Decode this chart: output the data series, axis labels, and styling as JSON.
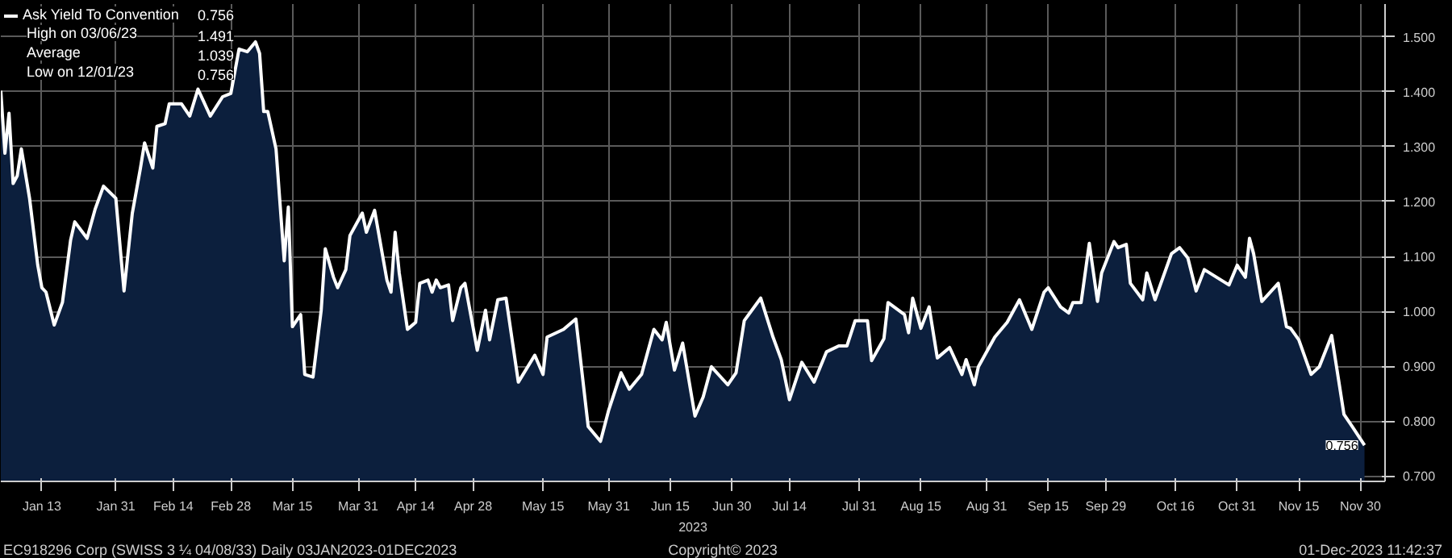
{
  "chart_data": {
    "type": "area",
    "xlabel": "2023",
    "x": [
      "2023-01-03",
      "2023-01-04",
      "2023-01-05",
      "2023-01-06",
      "2023-01-07",
      "2023-01-08",
      "2023-01-10",
      "2023-01-12",
      "2023-01-13",
      "2023-01-14",
      "2023-01-16",
      "2023-01-18",
      "2023-01-20",
      "2023-01-21",
      "2023-01-24",
      "2023-01-26",
      "2023-01-28",
      "2023-01-31",
      "2023-02-02",
      "2023-02-04",
      "2023-02-06",
      "2023-02-07",
      "2023-02-09",
      "2023-02-10",
      "2023-02-12",
      "2023-02-13",
      "2023-02-16",
      "2023-02-18",
      "2023-02-20",
      "2023-02-23",
      "2023-02-26",
      "2023-02-28",
      "2023-03-02",
      "2023-03-04",
      "2023-03-06",
      "2023-03-07",
      "2023-03-08",
      "2023-03-09",
      "2023-03-11",
      "2023-03-13",
      "2023-03-14",
      "2023-03-15",
      "2023-03-17",
      "2023-03-18",
      "2023-03-20",
      "2023-03-22",
      "2023-03-23",
      "2023-03-25",
      "2023-03-26",
      "2023-03-28",
      "2023-03-29",
      "2023-04-01",
      "2023-04-02",
      "2023-04-04",
      "2023-04-07",
      "2023-04-08",
      "2023-04-09",
      "2023-04-10",
      "2023-04-12",
      "2023-04-14",
      "2023-04-15",
      "2023-04-17",
      "2023-04-18",
      "2023-04-19",
      "2023-04-20",
      "2023-04-22",
      "2023-04-23",
      "2023-04-25",
      "2023-04-26",
      "2023-04-29",
      "2023-05-01",
      "2023-05-02",
      "2023-05-04",
      "2023-05-06",
      "2023-05-09",
      "2023-05-13",
      "2023-05-15",
      "2023-05-16",
      "2023-05-20",
      "2023-05-23",
      "2023-05-26",
      "2023-05-29",
      "2023-05-31",
      "2023-06-03",
      "2023-06-05",
      "2023-06-08",
      "2023-06-11",
      "2023-06-13",
      "2023-06-14",
      "2023-06-16",
      "2023-06-18",
      "2023-06-21",
      "2023-06-23",
      "2023-06-25",
      "2023-06-29",
      "2023-07-01",
      "2023-07-03",
      "2023-07-07",
      "2023-07-10",
      "2023-07-12",
      "2023-07-14",
      "2023-07-17",
      "2023-07-20",
      "2023-07-23",
      "2023-07-26",
      "2023-07-28",
      "2023-07-30",
      "2023-08-02",
      "2023-08-03",
      "2023-08-06",
      "2023-08-07",
      "2023-08-11",
      "2023-08-12",
      "2023-08-13",
      "2023-08-15",
      "2023-08-17",
      "2023-08-19",
      "2023-08-22",
      "2023-08-25",
      "2023-08-26",
      "2023-08-28",
      "2023-08-29",
      "2023-09-02",
      "2023-09-05",
      "2023-09-08",
      "2023-09-11",
      "2023-09-14",
      "2023-09-15",
      "2023-09-18",
      "2023-09-20",
      "2023-09-21",
      "2023-09-23",
      "2023-09-25",
      "2023-09-27",
      "2023-09-28",
      "2023-10-01",
      "2023-10-02",
      "2023-10-04",
      "2023-10-05",
      "2023-10-08",
      "2023-10-09",
      "2023-10-11",
      "2023-10-15",
      "2023-10-17",
      "2023-10-19",
      "2023-10-21",
      "2023-10-23",
      "2023-10-29",
      "2023-10-31",
      "2023-11-02",
      "2023-11-03",
      "2023-11-04",
      "2023-11-06",
      "2023-11-10",
      "2023-11-12",
      "2023-11-13",
      "2023-11-15",
      "2023-11-18",
      "2023-11-20",
      "2023-11-23",
      "2023-11-26",
      "2023-11-28",
      "2023-12-01"
    ],
    "series": [
      {
        "name": "Ask Yield To Convention",
        "color": "#ffffff",
        "values": [
          1.402,
          1.288,
          1.361,
          1.233,
          1.247,
          1.296,
          1.206,
          1.084,
          1.043,
          1.035,
          0.975,
          1.016,
          1.13,
          1.163,
          1.133,
          1.187,
          1.228,
          1.206,
          1.037,
          1.178,
          1.261,
          1.307,
          1.261,
          1.337,
          1.342,
          1.378,
          1.378,
          1.356,
          1.405,
          1.356,
          1.391,
          1.397,
          1.478,
          1.473,
          1.491,
          1.47,
          1.364,
          1.364,
          1.296,
          1.092,
          1.19,
          0.972,
          0.994,
          0.885,
          0.88,
          1.002,
          1.114,
          1.062,
          1.043,
          1.076,
          1.138,
          1.179,
          1.144,
          1.184,
          1.057,
          1.035,
          1.144,
          1.07,
          0.967,
          0.98,
          1.051,
          1.057,
          1.035,
          1.057,
          1.043,
          1.048,
          0.983,
          1.043,
          1.051,
          0.929,
          1.002,
          0.948,
          1.021,
          1.024,
          0.871,
          0.92,
          0.885,
          0.953,
          0.967,
          0.986,
          0.79,
          0.763,
          0.82,
          0.888,
          0.858,
          0.885,
          0.967,
          0.948,
          0.98,
          0.893,
          0.942,
          0.809,
          0.844,
          0.899,
          0.866,
          0.888,
          0.983,
          1.024,
          0.953,
          0.912,
          0.839,
          0.907,
          0.871,
          0.926,
          0.937,
          0.937,
          0.983,
          0.983,
          0.91,
          0.95,
          1.016,
          0.994,
          0.961,
          1.024,
          0.969,
          1.008,
          0.915,
          0.934,
          0.885,
          0.912,
          0.866,
          0.899,
          0.953,
          0.98,
          1.021,
          0.967,
          1.035,
          1.043,
          1.008,
          0.997,
          1.016,
          1.016,
          1.124,
          1.018,
          1.07,
          1.127,
          1.116,
          1.122,
          1.051,
          1.021,
          1.07,
          1.021,
          1.105,
          1.116,
          1.097,
          1.037,
          1.076,
          1.048,
          1.084,
          1.062,
          1.133,
          1.105,
          1.018,
          1.051,
          0.972,
          0.969,
          0.948,
          0.885,
          0.899,
          0.956,
          0.812,
          0.79,
          0.756
        ]
      }
    ],
    "xlim": [
      "2023-01-03",
      "2023-12-06"
    ],
    "xticks": [
      {
        "value": "2023-01-13",
        "label": "Jan 13"
      },
      {
        "value": "2023-01-31",
        "label": "Jan 31"
      },
      {
        "value": "2023-02-14",
        "label": "Feb 14"
      },
      {
        "value": "2023-02-28",
        "label": "Feb 28"
      },
      {
        "value": "2023-03-15",
        "label": "Mar 15"
      },
      {
        "value": "2023-03-31",
        "label": "Mar 31"
      },
      {
        "value": "2023-04-14",
        "label": "Apr 14"
      },
      {
        "value": "2023-04-28",
        "label": "Apr 28"
      },
      {
        "value": "2023-05-15",
        "label": "May 15"
      },
      {
        "value": "2023-05-31",
        "label": "May 31"
      },
      {
        "value": "2023-06-15",
        "label": "Jun 15"
      },
      {
        "value": "2023-06-30",
        "label": "Jun 30"
      },
      {
        "value": "2023-07-14",
        "label": "Jul 14"
      },
      {
        "value": "2023-07-31",
        "label": "Jul 31"
      },
      {
        "value": "2023-08-15",
        "label": "Aug 15"
      },
      {
        "value": "2023-08-31",
        "label": "Aug 31"
      },
      {
        "value": "2023-09-15",
        "label": "Sep 15"
      },
      {
        "value": "2023-09-29",
        "label": "Sep 29"
      },
      {
        "value": "2023-10-16",
        "label": "Oct 16"
      },
      {
        "value": "2023-10-31",
        "label": "Oct 31"
      },
      {
        "value": "2023-11-15",
        "label": "Nov 15"
      },
      {
        "value": "2023-11-30",
        "label": "Nov 30"
      }
    ],
    "ylim": [
      0.69,
      1.56
    ],
    "yticks": [
      {
        "value": 0.7,
        "label": "0.700"
      },
      {
        "value": 0.8,
        "label": "0.800"
      },
      {
        "value": 0.9,
        "label": "0.900"
      },
      {
        "value": 1.0,
        "label": "1.000"
      },
      {
        "value": 1.1,
        "label": "1.100"
      },
      {
        "value": 1.2,
        "label": "1.200"
      },
      {
        "value": 1.3,
        "label": "1.300"
      },
      {
        "value": 1.4,
        "label": "1.400"
      },
      {
        "value": 1.5,
        "label": "1.500"
      }
    ],
    "grid": true,
    "legend": "top left",
    "annotations": [
      "0.756",
      "High on 03/06/23",
      "1.491",
      "Average",
      "1.039",
      "Low on 12/01/23",
      "0.756",
      "EC918296 Corp (SWISS 3 ¼ 04/08/33)  Daily 03JAN2023-01DEC2023",
      "Copyright© 2023",
      "01-Dec-2023 11:42:37",
      {
        "text": "0.756",
        "x": "2023-12-01",
        "y": 0.756
      }
    ]
  }
}
